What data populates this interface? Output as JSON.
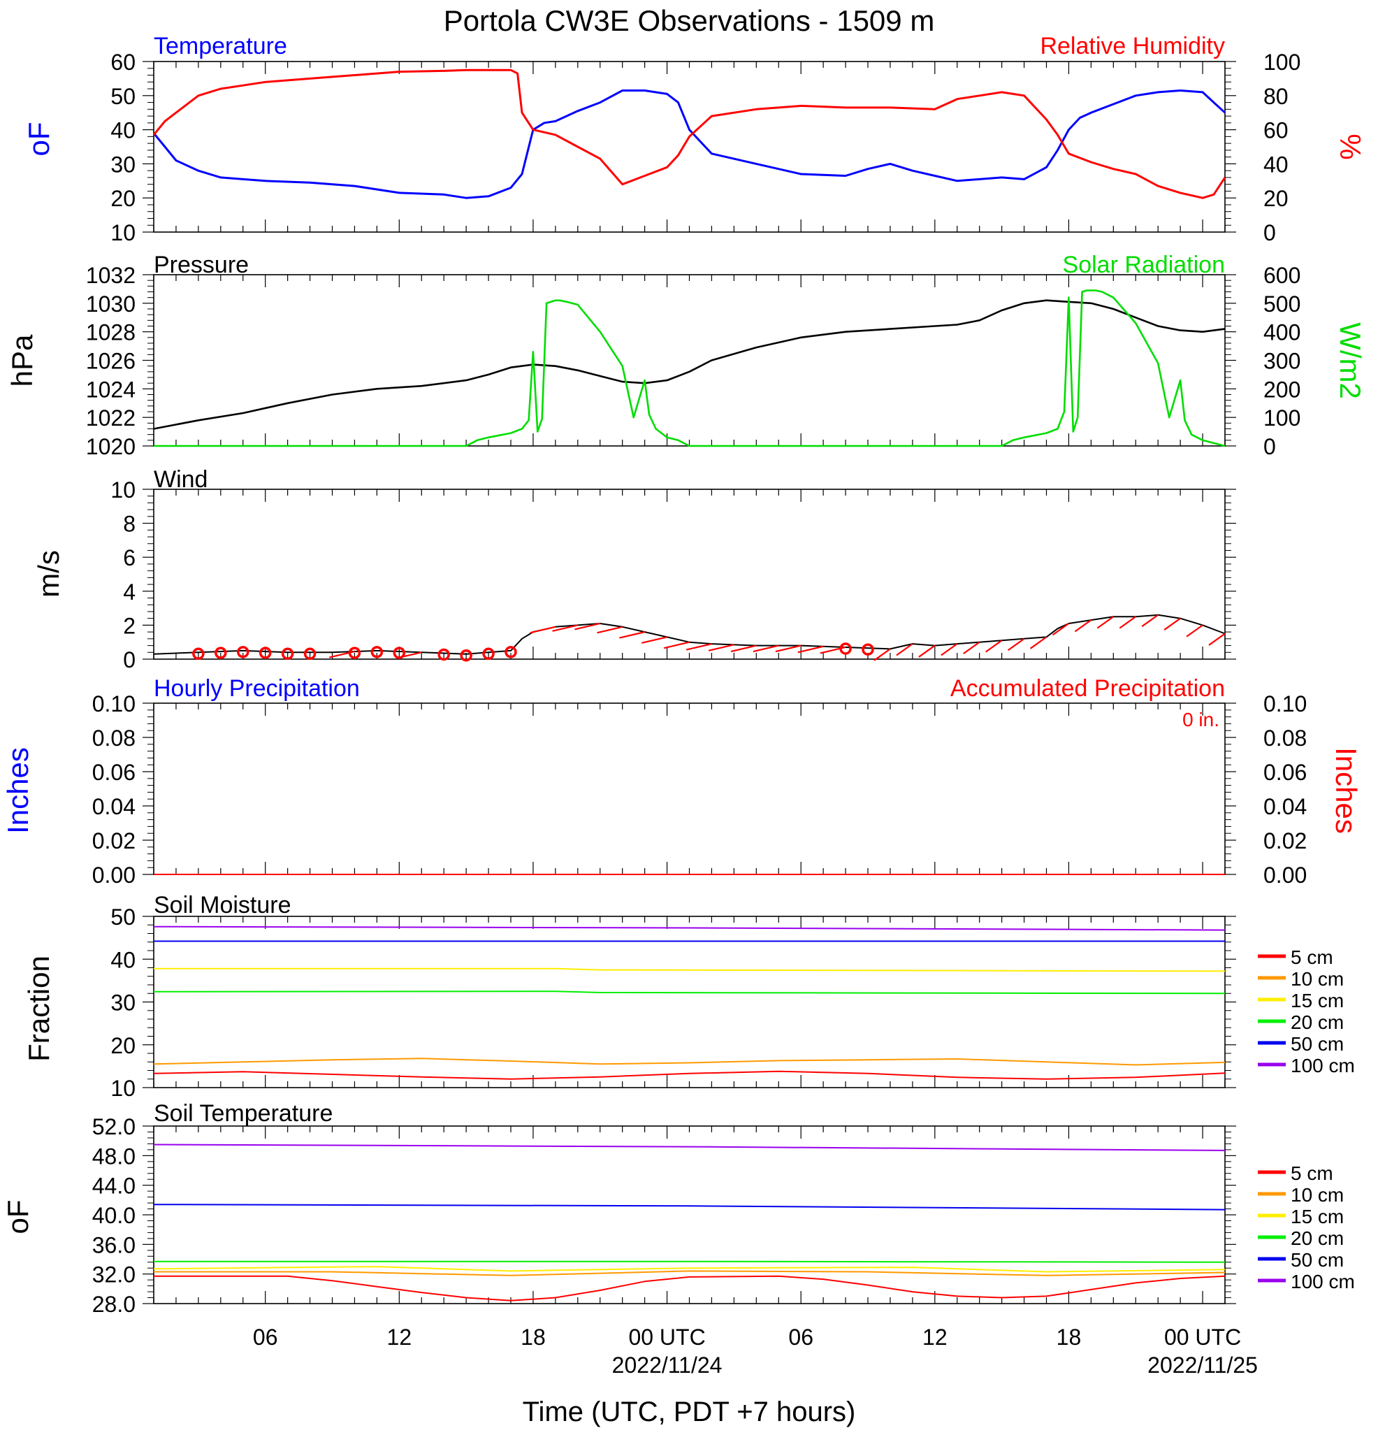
{
  "title": "Portola CW3E Observations - 1509 m",
  "x_axis": {
    "label": "Time (UTC, PDT +7 hours)",
    "tick_hours": [
      6,
      12,
      18,
      24,
      30,
      36,
      42,
      48
    ],
    "tick_labels": [
      "06",
      "12",
      "18",
      "00 UTC",
      "06",
      "12",
      "18",
      "00 UTC"
    ],
    "date_labels": [
      {
        "hour": 24,
        "text": "2022/11/24"
      },
      {
        "hour": 48,
        "text": "2022/11/25"
      }
    ],
    "range_hours": [
      1,
      49
    ]
  },
  "colors": {
    "temp": "#0000ff",
    "rh": "#ff0000",
    "pressure": "#000000",
    "solar": "#00dd00",
    "wind": "#000000",
    "barb": "#ff0000"
  },
  "panels": {
    "temperature": {
      "left_title": "Temperature",
      "right_title": "Relative Humidity",
      "left_unit": "oF",
      "right_unit": "%"
    },
    "pressure": {
      "left_title": "Pressure",
      "right_title": "Solar Radiation",
      "left_unit": "hPa",
      "right_unit": "W/m2"
    },
    "wind": {
      "left_title": "Wind",
      "left_unit": "m/s"
    },
    "precip": {
      "left_title": "Hourly Precipitation",
      "right_title": "Accumulated Precipitation",
      "left_unit": "Inches",
      "right_unit": "Inches",
      "total_label": "0 in."
    },
    "soil_moisture": {
      "left_title": "Soil Moisture",
      "left_unit": "Fraction"
    },
    "soil_temperature": {
      "left_title": "Soil Temperature",
      "left_unit": "oF"
    }
  },
  "depth_legend": [
    {
      "label": "5 cm",
      "color": "#ff0000"
    },
    {
      "label": "10 cm",
      "color": "#ff9900"
    },
    {
      "label": "15 cm",
      "color": "#ffee00"
    },
    {
      "label": "20 cm",
      "color": "#00ee00"
    },
    {
      "label": "50 cm",
      "color": "#0000ee"
    },
    {
      "label": "100 cm",
      "color": "#9900ee"
    }
  ],
  "chart_data": [
    {
      "type": "line",
      "name": "temperature_rh",
      "title": "Temperature / Relative Humidity",
      "xlabel": "Time (UTC, PDT +7 hours)",
      "y_left": {
        "label": "oF",
        "range": [
          10,
          60
        ],
        "ticks": [
          10,
          20,
          30,
          40,
          50,
          60
        ]
      },
      "y_right": {
        "label": "%",
        "range": [
          0,
          100
        ],
        "ticks": [
          0,
          20,
          40,
          60,
          80,
          100
        ]
      },
      "series": [
        {
          "name": "Temperature",
          "axis": "left",
          "color": "#0000ff",
          "x": [
            1,
            1.5,
            2,
            3,
            4,
            5,
            6,
            8,
            10,
            12,
            14,
            15,
            16,
            17,
            17.5,
            18,
            18.5,
            19,
            20,
            21,
            22,
            23,
            24,
            24.5,
            25,
            26,
            28,
            30,
            32,
            33,
            34,
            35,
            36,
            37,
            38,
            39,
            40,
            41,
            41.5,
            42,
            42.5,
            43,
            44,
            45,
            46,
            47,
            48,
            48.5,
            49
          ],
          "y": [
            39,
            35,
            31,
            28,
            26,
            25.5,
            25,
            24.5,
            23.5,
            21.5,
            21,
            20,
            20.5,
            23,
            27,
            40,
            42,
            42.5,
            45.5,
            48,
            51.5,
            51.5,
            50.5,
            48,
            40,
            33,
            30,
            27,
            26.5,
            28.5,
            30,
            28,
            26.5,
            25,
            25.5,
            26,
            25.5,
            29,
            34,
            40,
            43.5,
            45,
            47.5,
            50,
            51,
            51.5,
            51,
            48,
            45
          ]
        },
        {
          "name": "Relative Humidity",
          "axis": "right",
          "color": "#ff0000",
          "x": [
            1,
            1.5,
            2,
            3,
            4,
            5,
            6,
            8,
            10,
            12,
            14,
            15,
            16,
            17,
            17.3,
            17.5,
            18,
            19,
            20,
            21,
            22,
            23,
            24,
            24.5,
            25,
            26,
            28,
            30,
            32,
            34,
            36,
            37,
            38,
            39,
            40,
            41,
            41.5,
            42,
            43,
            44,
            45,
            46,
            47,
            48,
            48.5,
            49
          ],
          "y": [
            57,
            65,
            70,
            80,
            84,
            86,
            88,
            90,
            92,
            94,
            94.5,
            95,
            95,
            95,
            93,
            70,
            60,
            57,
            50,
            43,
            28,
            33,
            38,
            45,
            56,
            68,
            72,
            74,
            73,
            73,
            72,
            78,
            80,
            82,
            80,
            66,
            57,
            46,
            41,
            37,
            34,
            27,
            23,
            20,
            22,
            32
          ]
        }
      ]
    },
    {
      "type": "line",
      "name": "pressure_solar",
      "title": "Pressure / Solar Radiation",
      "xlabel": "Time (UTC, PDT +7 hours)",
      "y_left": {
        "label": "hPa",
        "range": [
          1020,
          1032
        ],
        "ticks": [
          1020,
          1022,
          1024,
          1026,
          1028,
          1030,
          1032
        ]
      },
      "y_right": {
        "label": "W/m2",
        "range": [
          0,
          600
        ],
        "ticks": [
          0,
          100,
          200,
          300,
          400,
          500,
          600
        ]
      },
      "series": [
        {
          "name": "Pressure",
          "axis": "left",
          "color": "#000000",
          "x": [
            1,
            3,
            5,
            7,
            9,
            11,
            13,
            15,
            16,
            17,
            18,
            19,
            20,
            21,
            22,
            23,
            24,
            25,
            26,
            28,
            30,
            32,
            34,
            36,
            37,
            38,
            39,
            40,
            41,
            42,
            43,
            44,
            45,
            46,
            47,
            48,
            49
          ],
          "y": [
            1021.2,
            1021.8,
            1022.3,
            1023.0,
            1023.6,
            1024.0,
            1024.2,
            1024.6,
            1025.0,
            1025.5,
            1025.7,
            1025.6,
            1025.3,
            1024.9,
            1024.5,
            1024.4,
            1024.6,
            1025.2,
            1026.0,
            1026.9,
            1027.6,
            1028.0,
            1028.2,
            1028.4,
            1028.5,
            1028.8,
            1029.5,
            1030.0,
            1030.2,
            1030.1,
            1030.0,
            1029.6,
            1029.0,
            1028.4,
            1028.1,
            1028.0,
            1028.2
          ]
        },
        {
          "name": "Solar Radiation",
          "axis": "right",
          "color": "#00dd00",
          "x": [
            1,
            15,
            15.5,
            16,
            17,
            17.5,
            17.8,
            18,
            18.2,
            18.4,
            18.6,
            18.8,
            19,
            19.2,
            19.5,
            20,
            21,
            22,
            22.5,
            23,
            23.2,
            23.5,
            24,
            24.5,
            25,
            39,
            39.5,
            40,
            41,
            41.5,
            41.8,
            42,
            42.2,
            42.4,
            42.6,
            42.8,
            43,
            43.2,
            43.5,
            44,
            45,
            46,
            46.5,
            47,
            47.2,
            47.5,
            48,
            48.5,
            49
          ],
          "y": [
            0,
            0,
            20,
            30,
            45,
            60,
            90,
            330,
            50,
            95,
            500,
            505,
            510,
            510,
            505,
            495,
            400,
            280,
            100,
            230,
            110,
            60,
            30,
            20,
            0,
            0,
            20,
            30,
            45,
            60,
            120,
            520,
            50,
            100,
            540,
            545,
            545,
            545,
            540,
            520,
            430,
            290,
            100,
            230,
            90,
            40,
            20,
            10,
            0
          ]
        }
      ]
    },
    {
      "type": "line",
      "name": "wind",
      "title": "Wind",
      "xlabel": "Time (UTC, PDT +7 hours)",
      "y_left": {
        "label": "m/s",
        "range": [
          0,
          10
        ],
        "ticks": [
          0,
          2,
          4,
          6,
          8,
          10
        ]
      },
      "series": [
        {
          "name": "Wind Speed",
          "axis": "left",
          "color": "#000000",
          "x": [
            1,
            3,
            5,
            7,
            9,
            11,
            13,
            15,
            16,
            17,
            17.5,
            18,
            19,
            20,
            21,
            22,
            23,
            24,
            25,
            26,
            28,
            30,
            32,
            34,
            35,
            36,
            37,
            38,
            40,
            41,
            41.5,
            42,
            43,
            44,
            45,
            46,
            47,
            48,
            49
          ],
          "y": [
            0.3,
            0.4,
            0.5,
            0.4,
            0.4,
            0.5,
            0.4,
            0.3,
            0.4,
            0.5,
            1.2,
            1.6,
            1.9,
            2.0,
            2.1,
            1.9,
            1.6,
            1.3,
            1.0,
            0.9,
            0.8,
            0.8,
            0.7,
            0.6,
            0.9,
            0.8,
            0.9,
            1.0,
            1.2,
            1.3,
            1.8,
            2.1,
            2.3,
            2.5,
            2.5,
            2.6,
            2.4,
            2.0,
            1.5
          ]
        }
      ],
      "calm_hours": [
        3,
        4,
        5,
        6,
        7,
        8,
        10,
        11,
        12,
        14,
        15,
        16,
        17,
        32,
        33
      ],
      "barb_hours": [
        10,
        13,
        19,
        20,
        21,
        22,
        23,
        24,
        25,
        26,
        27,
        28,
        29,
        30,
        31,
        32,
        34,
        35,
        36,
        37,
        38,
        39,
        40,
        41,
        42,
        43,
        44,
        45,
        46,
        47,
        48,
        49
      ]
    },
    {
      "type": "line",
      "name": "precipitation",
      "title": "Hourly Precipitation / Accumulated Precipitation",
      "xlabel": "Time (UTC, PDT +7 hours)",
      "y_left": {
        "label": "Inches",
        "range": [
          0,
          0.1
        ],
        "ticks": [
          "0.00",
          "0.02",
          "0.04",
          "0.06",
          "0.08",
          "0.10"
        ]
      },
      "y_right": {
        "label": "Inches",
        "range": [
          0,
          0.1
        ],
        "ticks": [
          "0.00",
          "0.02",
          "0.04",
          "0.06",
          "0.08",
          "0.10"
        ]
      },
      "series": [
        {
          "name": "Hourly Precipitation",
          "axis": "left",
          "color": "#0000ff",
          "x": [
            1,
            49
          ],
          "y": [
            0,
            0
          ]
        },
        {
          "name": "Accumulated Precipitation",
          "axis": "right",
          "color": "#ff0000",
          "x": [
            1,
            49
          ],
          "y": [
            0,
            0
          ]
        }
      ]
    },
    {
      "type": "line",
      "name": "soil_moisture",
      "title": "Soil Moisture",
      "xlabel": "Time (UTC, PDT +7 hours)",
      "y_left": {
        "label": "Fraction",
        "range": [
          10,
          50
        ],
        "ticks": [
          10,
          20,
          30,
          40,
          50
        ]
      },
      "series": [
        {
          "name": "5 cm",
          "color": "#ff0000",
          "x": [
            1,
            5,
            9,
            13,
            17,
            21,
            25,
            29,
            33,
            37,
            41,
            45,
            49
          ],
          "y": [
            13.3,
            13.7,
            13.1,
            12.5,
            12.0,
            12.5,
            13.3,
            13.8,
            13.3,
            12.4,
            12.0,
            12.4,
            13.4
          ]
        },
        {
          "name": "10 cm",
          "color": "#ff9900",
          "x": [
            1,
            5,
            9,
            13,
            17,
            21,
            25,
            29,
            33,
            37,
            41,
            45,
            49
          ],
          "y": [
            15.5,
            16.0,
            16.5,
            16.8,
            16.2,
            15.5,
            15.8,
            16.3,
            16.5,
            16.7,
            16.0,
            15.3,
            15.9
          ]
        },
        {
          "name": "15 cm",
          "color": "#ffee00",
          "x": [
            1,
            19,
            21,
            49
          ],
          "y": [
            37.8,
            37.8,
            37.5,
            37.2
          ]
        },
        {
          "name": "20 cm",
          "color": "#00ee00",
          "x": [
            1,
            19,
            21,
            49
          ],
          "y": [
            32.4,
            32.5,
            32.2,
            32.0
          ]
        },
        {
          "name": "50 cm",
          "color": "#0000ee",
          "x": [
            1,
            49
          ],
          "y": [
            44.2,
            44.2
          ]
        },
        {
          "name": "100 cm",
          "color": "#9900ee",
          "x": [
            1,
            25,
            49
          ],
          "y": [
            47.6,
            47.3,
            46.8
          ]
        }
      ]
    },
    {
      "type": "line",
      "name": "soil_temperature",
      "title": "Soil Temperature",
      "xlabel": "Time (UTC, PDT +7 hours)",
      "y_left": {
        "label": "oF",
        "range": [
          28,
          52
        ],
        "ticks": [
          "28.0",
          "32.0",
          "36.0",
          "40.0",
          "44.0",
          "48.0",
          "52.0"
        ]
      },
      "series": [
        {
          "name": "5 cm",
          "color": "#ff0000",
          "x": [
            1,
            7,
            9,
            11,
            13,
            15,
            17,
            19,
            21,
            23,
            25,
            29,
            31,
            33,
            35,
            37,
            39,
            41,
            43,
            45,
            47,
            49
          ],
          "y": [
            31.7,
            31.7,
            31.1,
            30.3,
            29.5,
            28.8,
            28.4,
            28.8,
            29.8,
            31.0,
            31.6,
            31.7,
            31.3,
            30.5,
            29.6,
            29.0,
            28.8,
            29.0,
            29.9,
            30.8,
            31.4,
            31.7
          ]
        },
        {
          "name": "10 cm",
          "color": "#ff9900",
          "x": [
            1,
            9,
            17,
            25,
            33,
            41,
            49
          ],
          "y": [
            32.3,
            32.3,
            31.8,
            32.4,
            32.3,
            31.8,
            32.2
          ]
        },
        {
          "name": "15 cm",
          "color": "#ffee00",
          "x": [
            1,
            11,
            17,
            25,
            35,
            41,
            49
          ],
          "y": [
            32.7,
            33.0,
            32.4,
            32.8,
            32.9,
            32.3,
            32.6
          ]
        },
        {
          "name": "20 cm",
          "color": "#00ee00",
          "x": [
            1,
            25,
            49
          ],
          "y": [
            33.7,
            33.7,
            33.6
          ]
        },
        {
          "name": "50 cm",
          "color": "#0000ee",
          "x": [
            1,
            25,
            49
          ],
          "y": [
            41.4,
            41.2,
            40.7
          ]
        },
        {
          "name": "100 cm",
          "color": "#9900ee",
          "x": [
            1,
            25,
            49
          ],
          "y": [
            49.5,
            49.2,
            48.7
          ]
        }
      ]
    }
  ]
}
